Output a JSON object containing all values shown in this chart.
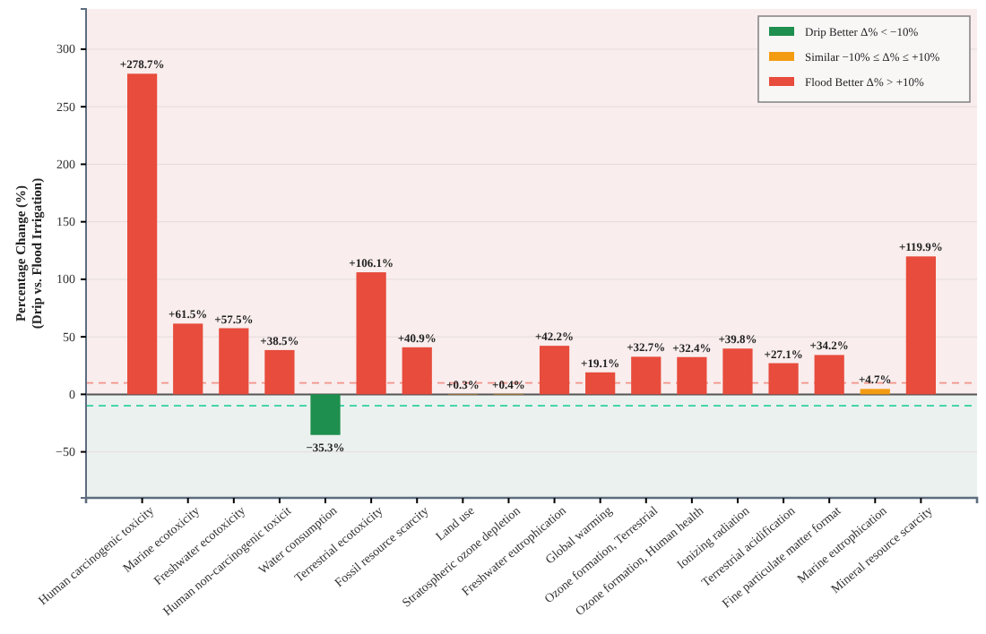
{
  "chart_data": {
    "type": "bar",
    "ylabel": "Percentage Change (%)\n(Drip vs. Flood Irrigation)",
    "categories": [
      "Human carcinogenic toxicity",
      "Marine ecotoxicity",
      "Freshwater ecotoxicity",
      "Human non-carcinogenic toxicit",
      "Water consumption",
      "Terrestrial ecotoxicity",
      "Fossil resource scarcity",
      "Land use",
      "Stratospheric ozone depletion",
      "Freshwater eutrophication",
      "Global warming",
      "Ozone formation, Terrestrial",
      "Ozone formation, Human health",
      "Ionizing radiation",
      "Terrestrial acidification",
      "Fine particulate matter format",
      "Marine eutrophication",
      "Mineral resource scarcity"
    ],
    "series": [
      {
        "name": "Drip Better  Δ% < −10%",
        "color": "#1e8f4e",
        "values": [
          null,
          null,
          null,
          null,
          -35.3,
          null,
          null,
          null,
          null,
          null,
          null,
          null,
          null,
          null,
          null,
          null,
          null,
          null
        ],
        "value_labels": [
          null,
          null,
          null,
          null,
          "−35.3%",
          null,
          null,
          null,
          null,
          null,
          null,
          null,
          null,
          null,
          null,
          null,
          null,
          null
        ]
      },
      {
        "name": "Similar  −10% ≤ Δ% ≤ +10%",
        "color": "#f39c12",
        "values": [
          null,
          null,
          null,
          null,
          null,
          null,
          null,
          0.3,
          0.4,
          null,
          null,
          null,
          null,
          null,
          null,
          null,
          4.7,
          null
        ],
        "value_labels": [
          null,
          null,
          null,
          null,
          null,
          null,
          null,
          "+0.3%",
          "+0.4%",
          null,
          null,
          null,
          null,
          null,
          null,
          null,
          "+4.7%",
          null
        ]
      },
      {
        "name": "Flood Better  Δ% > +10%",
        "color": "#e74c3c",
        "values": [
          278.7,
          61.5,
          57.5,
          38.5,
          null,
          106.1,
          40.9,
          null,
          null,
          42.2,
          19.1,
          32.7,
          32.4,
          39.8,
          27.1,
          34.2,
          null,
          119.9
        ],
        "value_labels": [
          "+278.7%",
          "+61.5%",
          "+57.5%",
          "+38.5%",
          null,
          "+106.1%",
          "+40.9%",
          null,
          null,
          "+42.2%",
          "+19.1%",
          "+32.7%",
          "+32.4%",
          "+39.8%",
          "+27.1%",
          "+34.2%",
          null,
          "+119.9%"
        ]
      }
    ],
    "ylim": [
      -90,
      335
    ],
    "yticks": [
      -50,
      0,
      50,
      100,
      150,
      200,
      250,
      300
    ],
    "grid": "y",
    "legend": "top right",
    "ref_lines": [
      {
        "axis": "y",
        "value": 10,
        "color": "#f1948a",
        "line_style": "dashed"
      },
      {
        "axis": "y",
        "value": -10,
        "color": "#2ed1a0",
        "line_style": "dashed"
      },
      {
        "axis": "y",
        "value": 0,
        "color": "#555555",
        "line_style": "solid"
      }
    ],
    "bands": [
      {
        "axis": "y",
        "from": 0,
        "to": 335,
        "color": "#f9eded"
      },
      {
        "axis": "y",
        "from": -90,
        "to": 0,
        "color": "#ebf1ef"
      }
    ]
  }
}
